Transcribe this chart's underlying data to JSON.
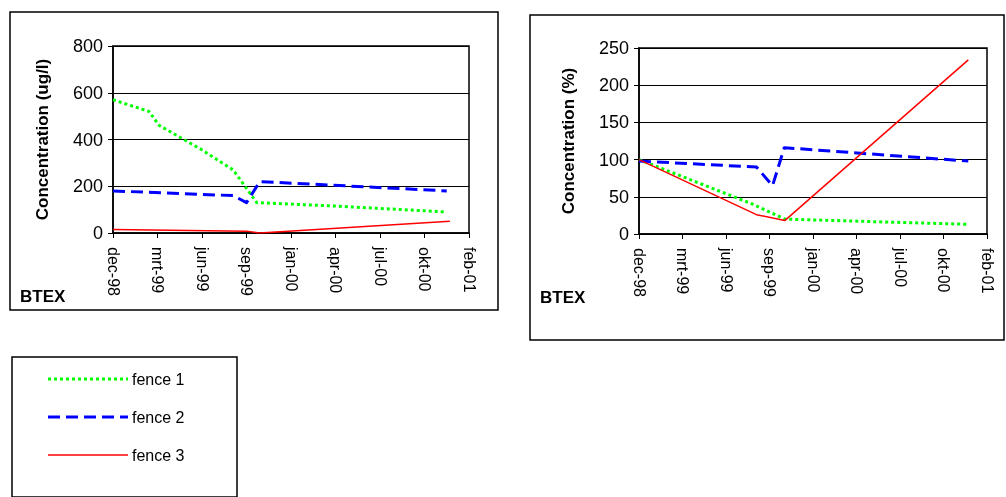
{
  "chart_data": [
    {
      "type": "line",
      "ylabel": "Concentration (ug/l)",
      "xlabel": "BTEX",
      "xlim": [
        "1998-12-01",
        "2001-02-08"
      ],
      "xticks": [
        {
          "value": "1998-12-01",
          "label": "dec-98"
        },
        {
          "value": "1999-03-11",
          "label": "mrt-99"
        },
        {
          "value": "1999-06-19",
          "label": "jun-99"
        },
        {
          "value": "1999-09-27",
          "label": "sep-99"
        },
        {
          "value": "2000-01-05",
          "label": "jan-00"
        },
        {
          "value": "2000-04-14",
          "label": "apr-00"
        },
        {
          "value": "2000-07-23",
          "label": "jul-00"
        },
        {
          "value": "2000-10-31",
          "label": "okt-00"
        },
        {
          "value": "2001-02-08",
          "label": "feb-01"
        }
      ],
      "ylim": [
        0,
        800
      ],
      "yticks": [
        0,
        200,
        400,
        600,
        800
      ],
      "grid": "y",
      "marker": "none",
      "legend": "bottom left",
      "series": [
        {
          "name": "fence 1",
          "color": "#00ff00",
          "line_style": "dotted",
          "x": [
            "1998-12-01",
            "1999-02-20",
            "1999-03-15",
            "1999-06-15",
            "1999-08-28",
            "1999-10-20",
            "2000-04-15",
            "2000-12-20"
          ],
          "values": [
            570,
            520,
            460,
            360,
            270,
            130,
            115,
            90
          ]
        },
        {
          "name": "fence 2",
          "color": "#0000ff",
          "line_style": "dashed",
          "x": [
            "1998-12-01",
            "1999-08-28",
            "1999-09-27",
            "1999-10-27",
            "2000-12-20"
          ],
          "values": [
            180,
            160,
            130,
            220,
            180
          ]
        },
        {
          "name": "fence 3",
          "color": "#ff0000",
          "line_style": "solid",
          "x": [
            "1998-12-01",
            "1999-09-27",
            "1999-10-27",
            "2000-12-27"
          ],
          "values": [
            15,
            8,
            0,
            50
          ]
        }
      ]
    },
    {
      "type": "line",
      "ylabel": "Concentration (%)",
      "xlabel": "BTEX",
      "xlim": [
        "1998-12-01",
        "2001-02-08"
      ],
      "xticks": [
        {
          "value": "1998-12-01",
          "label": "dec-98"
        },
        {
          "value": "1999-03-11",
          "label": "mrt-99"
        },
        {
          "value": "1999-06-19",
          "label": "jun-99"
        },
        {
          "value": "1999-09-27",
          "label": "sep-99"
        },
        {
          "value": "2000-01-05",
          "label": "jan-00"
        },
        {
          "value": "2000-04-14",
          "label": "apr-00"
        },
        {
          "value": "2000-07-23",
          "label": "jul-00"
        },
        {
          "value": "2000-10-31",
          "label": "okt-00"
        },
        {
          "value": "2001-02-08",
          "label": "feb-01"
        }
      ],
      "ylim": [
        0,
        250
      ],
      "yticks": [
        0,
        50,
        100,
        150,
        200,
        250
      ],
      "grid": "y",
      "marker": "none",
      "series": [
        {
          "color": "#00ff00",
          "line_style": "dotted",
          "x": [
            "1998-12-01",
            "1999-08-20",
            "1999-11-01",
            "2000-12-27"
          ],
          "values": [
            100,
            40,
            20,
            13
          ]
        },
        {
          "color": "#0000ff",
          "line_style": "dashed",
          "x": [
            "1998-12-01",
            "1999-08-28",
            "1999-10-04",
            "1999-10-31",
            "2000-12-27"
          ],
          "values": [
            98,
            90,
            65,
            116,
            98
          ]
        },
        {
          "color": "#ff0000",
          "line_style": "solid",
          "x": [
            "1998-12-01",
            "1999-08-28",
            "1999-11-01",
            "2000-12-27"
          ],
          "values": [
            100,
            26,
            18,
            234
          ]
        }
      ]
    }
  ]
}
